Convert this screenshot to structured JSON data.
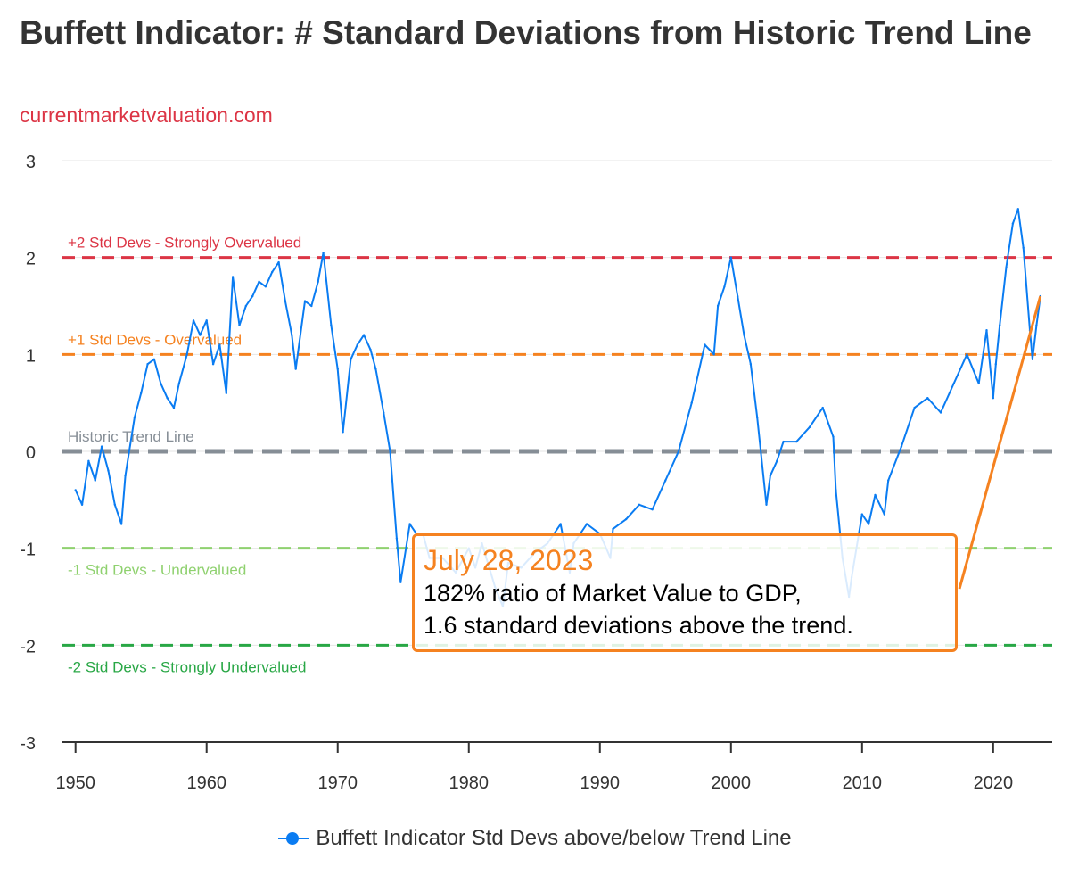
{
  "header": {
    "title": "Buffett Indicator: # Standard Deviations from Historic Trend Line",
    "subtitle": "currentmarketvaluation.com"
  },
  "tooltip": {
    "date": "July 28, 2023",
    "line1": "182% ratio of Market Value to GDP,",
    "line2": "1.6 standard deviations above the trend."
  },
  "legend": {
    "label": "Buffett Indicator Std Devs above/below Trend Line"
  },
  "colors": {
    "series": "#0a7cf2",
    "plus2": "#dc3545",
    "plus1": "#f58220",
    "trend": "#868e96",
    "minus1": "#8fd16f",
    "minus2": "#28a745",
    "tooltip_border": "#f58220"
  },
  "chart_data": {
    "type": "line",
    "title": "Buffett Indicator: # Standard Deviations from Historic Trend Line",
    "subtitle": "currentmarketvaluation.com",
    "xlim": [
      1949,
      2024.5
    ],
    "ylim": [
      -3,
      3
    ],
    "x_ticks": [
      "1950",
      "1960",
      "1970",
      "1980",
      "1990",
      "2000",
      "2010",
      "2020"
    ],
    "y_ticks": [
      "3",
      "2",
      "1",
      "0",
      "-1",
      "-2",
      "-3"
    ],
    "grid": "horizontal",
    "legend_position": "bottom",
    "plot_lines": [
      {
        "value": 2,
        "label": "+2 Std Devs - Strongly Overvalued",
        "color": "#dc3545"
      },
      {
        "value": 1,
        "label": "+1 Std Devs - Overvalued",
        "color": "#f58220"
      },
      {
        "value": 0,
        "label": "Historic Trend Line",
        "color": "#868e96"
      },
      {
        "value": -1,
        "label": "-1 Std Devs - Undervalued",
        "color": "#8fd16f"
      },
      {
        "value": -2,
        "label": "-2 Std Devs - Strongly Undervalued",
        "color": "#28a745"
      }
    ],
    "series": [
      {
        "name": "Buffett Indicator Std Devs above/below Trend Line",
        "x": [
          1950.0,
          1950.5,
          1951.0,
          1951.5,
          1952.0,
          1952.5,
          1953.0,
          1953.5,
          1953.8,
          1954.5,
          1955.0,
          1955.5,
          1956.0,
          1956.5,
          1957.0,
          1957.5,
          1957.9,
          1958.5,
          1959.0,
          1959.5,
          1960.0,
          1960.5,
          1961.0,
          1961.5,
          1962.0,
          1962.5,
          1963.0,
          1963.5,
          1964.0,
          1964.5,
          1965.0,
          1965.5,
          1966.0,
          1966.5,
          1966.8,
          1967.5,
          1968.0,
          1968.5,
          1968.9,
          1969.5,
          1970.0,
          1970.4,
          1971.0,
          1971.5,
          1972.0,
          1972.5,
          1972.9,
          1973.5,
          1974.0,
          1974.5,
          1974.8,
          1975.5,
          1976.0,
          1976.5,
          1977.0,
          1978.0,
          1979.0,
          1980.0,
          1980.5,
          1981.0,
          1982.0,
          1982.6,
          1983.0,
          1984.0,
          1985.0,
          1986.0,
          1987.0,
          1987.7,
          1988.0,
          1989.0,
          1990.0,
          1990.8,
          1991.0,
          1992.0,
          1993.0,
          1994.0,
          1995.0,
          1996.0,
          1997.0,
          1998.0,
          1998.7,
          1999.0,
          1999.5,
          2000.0,
          2000.5,
          2001.0,
          2001.5,
          2002.0,
          2002.7,
          2003.0,
          2003.5,
          2004.0,
          2005.0,
          2006.0,
          2007.0,
          2007.8,
          2008.0,
          2008.5,
          2009.0,
          2009.2,
          2010.0,
          2010.5,
          2011.0,
          2011.7,
          2012.0,
          2013.0,
          2014.0,
          2015.0,
          2016.0,
          2017.0,
          2018.0,
          2018.9,
          2019.5,
          2020.0,
          2020.2,
          2020.5,
          2021.0,
          2021.5,
          2021.9,
          2022.3,
          2022.8,
          2023.0,
          2023.3,
          2023.6
        ],
        "values": [
          -0.4,
          -0.55,
          -0.1,
          -0.3,
          0.05,
          -0.2,
          -0.55,
          -0.75,
          -0.25,
          0.35,
          0.6,
          0.9,
          0.95,
          0.7,
          0.55,
          0.45,
          0.7,
          1.0,
          1.35,
          1.2,
          1.35,
          0.9,
          1.1,
          0.6,
          1.8,
          1.3,
          1.5,
          1.6,
          1.75,
          1.7,
          1.85,
          1.95,
          1.55,
          1.2,
          0.85,
          1.55,
          1.5,
          1.75,
          2.05,
          1.3,
          0.85,
          0.2,
          0.95,
          1.1,
          1.2,
          1.05,
          0.85,
          0.4,
          0.0,
          -0.9,
          -1.35,
          -0.75,
          -0.85,
          -0.85,
          -1.1,
          -1.1,
          -1.25,
          -1.0,
          -1.2,
          -0.95,
          -1.4,
          -1.6,
          -1.15,
          -1.2,
          -1.05,
          -0.95,
          -0.75,
          -1.25,
          -0.95,
          -0.75,
          -0.85,
          -1.1,
          -0.8,
          -0.7,
          -0.55,
          -0.6,
          -0.3,
          0.0,
          0.5,
          1.1,
          1.0,
          1.5,
          1.7,
          2.0,
          1.6,
          1.2,
          0.9,
          0.35,
          -0.55,
          -0.25,
          -0.1,
          0.1,
          0.1,
          0.25,
          0.45,
          0.15,
          -0.4,
          -1.1,
          -1.5,
          -1.3,
          -0.65,
          -0.75,
          -0.45,
          -0.65,
          -0.3,
          0.05,
          0.45,
          0.55,
          0.4,
          0.7,
          1.0,
          0.7,
          1.25,
          0.55,
          0.9,
          1.3,
          1.9,
          2.35,
          2.5,
          2.1,
          1.25,
          0.95,
          1.3,
          1.6
        ]
      }
    ]
  }
}
